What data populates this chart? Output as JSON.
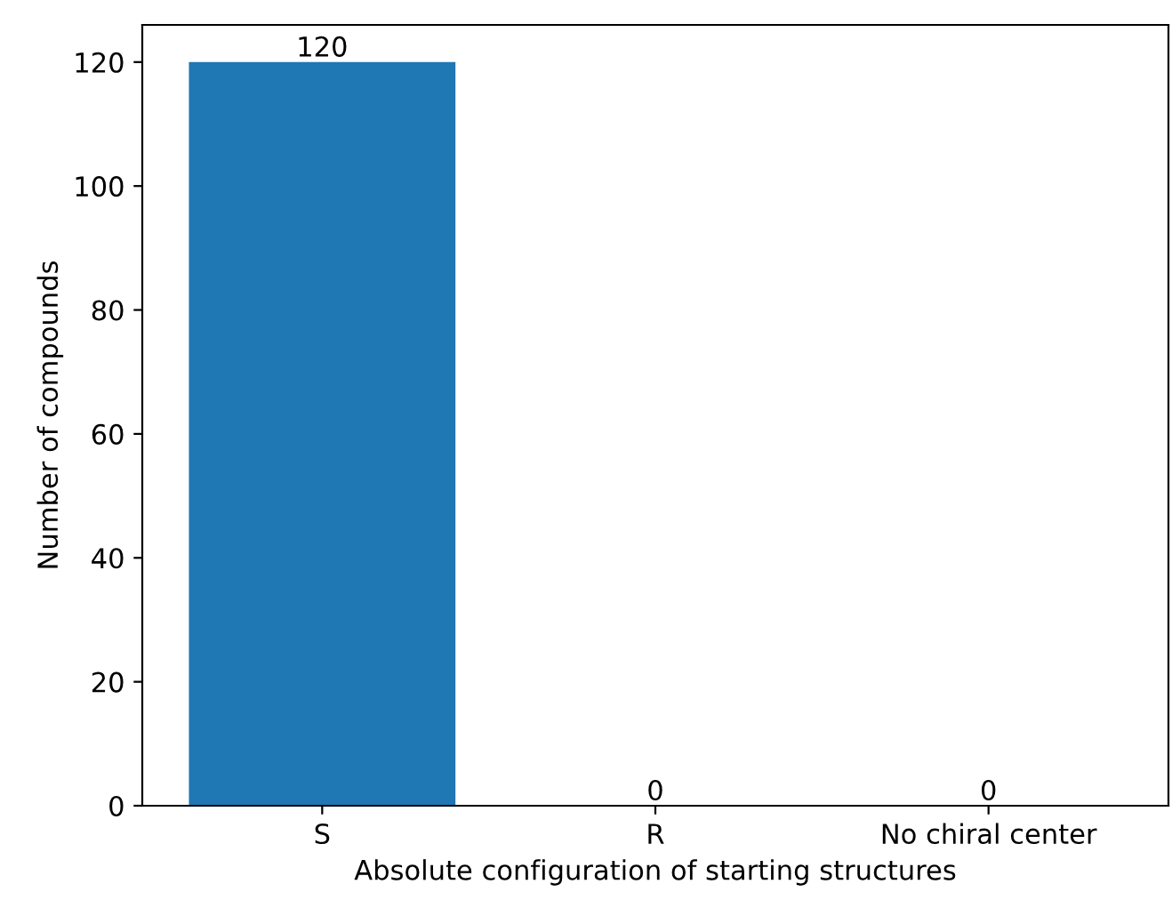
{
  "chart_data": {
    "type": "bar",
    "xlabel": "Absolute configuration of starting structures",
    "ylabel": "Number of compounds",
    "categories": [
      "S",
      "R",
      "No chiral center"
    ],
    "values": [
      120,
      0,
      0
    ],
    "color": "#1f77b4",
    "ylim": [
      0,
      126
    ],
    "yticks": [
      0,
      20,
      40,
      60,
      80,
      100,
      120
    ],
    "data_labels": true,
    "grid": false
  }
}
